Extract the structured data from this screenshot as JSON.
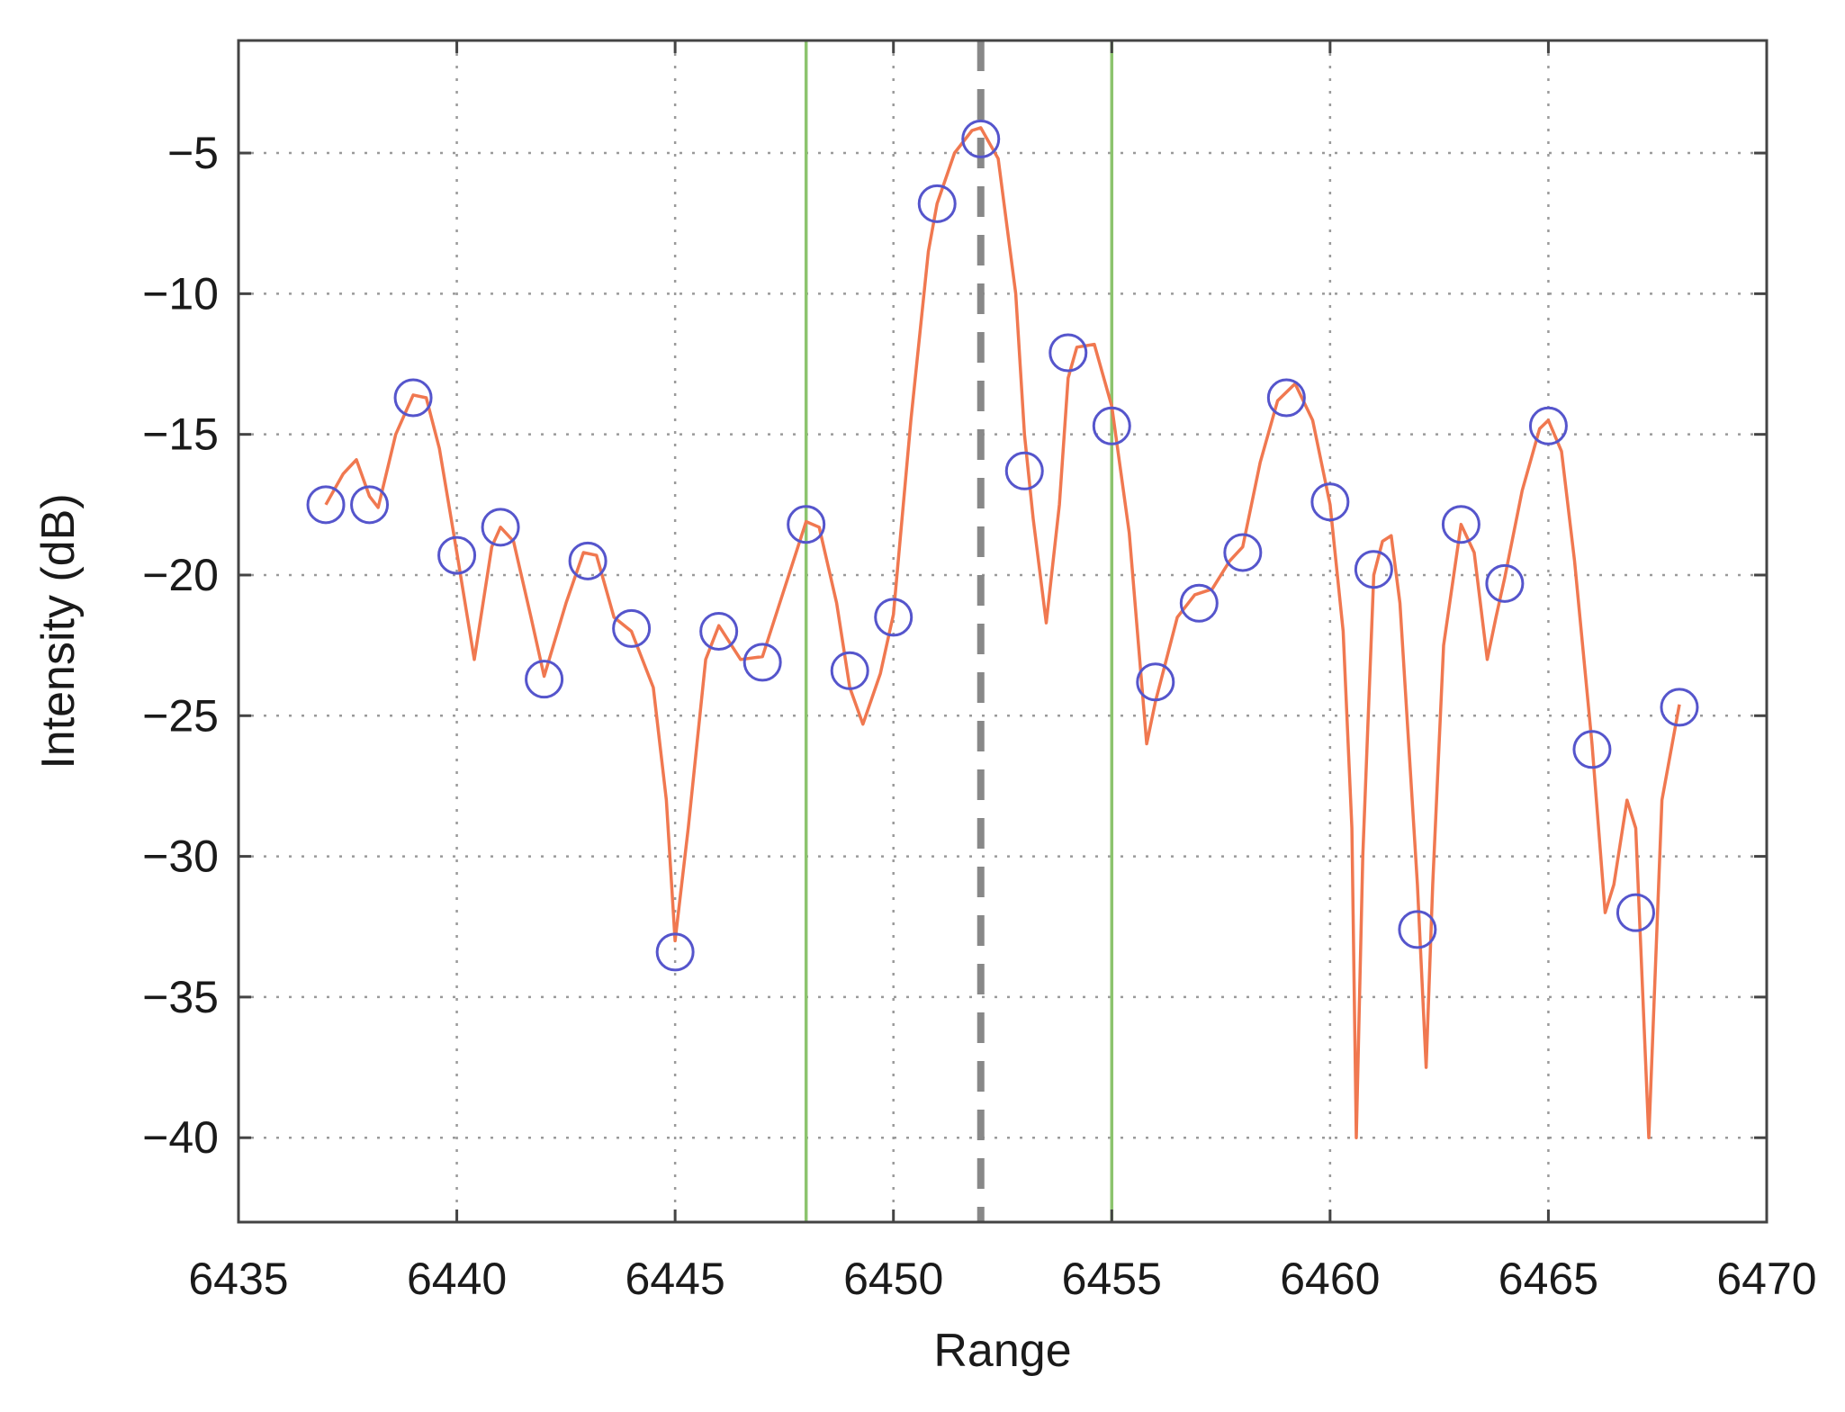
{
  "chart_data": {
    "type": "line",
    "title": "",
    "xlabel": "Range",
    "ylabel": "Intensity (dB)",
    "xlim": [
      6435,
      6470
    ],
    "ylim": [
      -43,
      -1
    ],
    "x_ticks": [
      6435,
      6440,
      6445,
      6450,
      6455,
      6460,
      6465,
      6470
    ],
    "x_tick_labels": [
      "6435",
      "6440",
      "6445",
      "6450",
      "6455",
      "6460",
      "6465",
      "6470"
    ],
    "y_ticks": [
      -5,
      -10,
      -15,
      -20,
      -25,
      -30,
      -35,
      -40
    ],
    "y_tick_labels": [
      "−5",
      "−10",
      "−15",
      "−20",
      "−25",
      "−30",
      "−35",
      "−40"
    ],
    "grid": true,
    "series": [
      {
        "kind": "interpolated-line",
        "color": "#f07850",
        "points": [
          [
            6437.0,
            -17.5
          ],
          [
            6437.4,
            -16.4
          ],
          [
            6437.7,
            -15.9
          ],
          [
            6438.0,
            -17.2
          ],
          [
            6438.2,
            -17.6
          ],
          [
            6438.6,
            -15.0
          ],
          [
            6439.0,
            -13.6
          ],
          [
            6439.3,
            -13.7
          ],
          [
            6439.6,
            -15.5
          ],
          [
            6440.0,
            -19.2
          ],
          [
            6440.4,
            -23.0
          ],
          [
            6440.8,
            -19.0
          ],
          [
            6441.0,
            -18.3
          ],
          [
            6441.3,
            -18.8
          ],
          [
            6441.7,
            -21.5
          ],
          [
            6442.0,
            -23.6
          ],
          [
            6442.5,
            -21.0
          ],
          [
            6442.9,
            -19.2
          ],
          [
            6443.2,
            -19.3
          ],
          [
            6443.6,
            -21.5
          ],
          [
            6444.0,
            -22.0
          ],
          [
            6444.5,
            -24.0
          ],
          [
            6444.8,
            -28.0
          ],
          [
            6445.0,
            -33.0
          ],
          [
            6445.3,
            -29.0
          ],
          [
            6445.7,
            -23.0
          ],
          [
            6446.0,
            -21.8
          ],
          [
            6446.5,
            -23.0
          ],
          [
            6447.0,
            -22.9
          ],
          [
            6447.5,
            -20.5
          ],
          [
            6448.0,
            -18.1
          ],
          [
            6448.3,
            -18.3
          ],
          [
            6448.7,
            -21.0
          ],
          [
            6449.0,
            -24.0
          ],
          [
            6449.3,
            -25.3
          ],
          [
            6449.7,
            -23.5
          ],
          [
            6450.0,
            -21.4
          ],
          [
            6450.4,
            -14.5
          ],
          [
            6450.8,
            -8.5
          ],
          [
            6451.0,
            -6.8
          ],
          [
            6451.4,
            -5.0
          ],
          [
            6451.8,
            -4.2
          ],
          [
            6452.0,
            -4.1
          ],
          [
            6452.4,
            -5.2
          ],
          [
            6452.8,
            -10.0
          ],
          [
            6453.0,
            -15.0
          ],
          [
            6453.2,
            -18.0
          ],
          [
            6453.5,
            -21.7
          ],
          [
            6453.8,
            -17.5
          ],
          [
            6454.0,
            -13.0
          ],
          [
            6454.2,
            -11.9
          ],
          [
            6454.6,
            -11.8
          ],
          [
            6455.0,
            -14.0
          ],
          [
            6455.4,
            -18.5
          ],
          [
            6455.8,
            -26.0
          ],
          [
            6456.0,
            -24.5
          ],
          [
            6456.5,
            -21.5
          ],
          [
            6456.9,
            -20.7
          ],
          [
            6457.3,
            -20.5
          ],
          [
            6457.7,
            -19.5
          ],
          [
            6458.0,
            -19.0
          ],
          [
            6458.4,
            -16.0
          ],
          [
            6458.8,
            -13.8
          ],
          [
            6459.2,
            -13.2
          ],
          [
            6459.6,
            -14.5
          ],
          [
            6460.0,
            -17.5
          ],
          [
            6460.3,
            -22.0
          ],
          [
            6460.5,
            -29.0
          ],
          [
            6460.6,
            -40.0
          ],
          [
            6460.75,
            -30.0
          ],
          [
            6460.9,
            -24.0
          ],
          [
            6461.0,
            -20.0
          ],
          [
            6461.2,
            -18.8
          ],
          [
            6461.4,
            -18.6
          ],
          [
            6461.6,
            -21.0
          ],
          [
            6461.8,
            -26.0
          ],
          [
            6462.0,
            -31.0
          ],
          [
            6462.2,
            -37.5
          ],
          [
            6462.35,
            -31.0
          ],
          [
            6462.6,
            -22.5
          ],
          [
            6463.0,
            -18.2
          ],
          [
            6463.3,
            -19.2
          ],
          [
            6463.6,
            -23.0
          ],
          [
            6463.8,
            -21.5
          ],
          [
            6464.0,
            -20.1
          ],
          [
            6464.4,
            -17.0
          ],
          [
            6464.8,
            -14.8
          ],
          [
            6465.0,
            -14.5
          ],
          [
            6465.3,
            -15.6
          ],
          [
            6465.6,
            -19.5
          ],
          [
            6466.0,
            -26.0
          ],
          [
            6466.3,
            -32.0
          ],
          [
            6466.5,
            -31.0
          ],
          [
            6466.8,
            -28.0
          ],
          [
            6467.0,
            -29.0
          ],
          [
            6467.3,
            -40.0
          ],
          [
            6467.6,
            -28.0
          ],
          [
            6468.0,
            -24.6
          ]
        ]
      },
      {
        "kind": "markers",
        "marker": "circle",
        "color": "#5555cc",
        "x": [
          6437,
          6438,
          6439,
          6440,
          6441,
          6442,
          6443,
          6444,
          6445,
          6446,
          6447,
          6448,
          6449,
          6450,
          6451,
          6452,
          6453,
          6454,
          6455,
          6456,
          6457,
          6458,
          6459,
          6460,
          6461,
          6462,
          6463,
          6464,
          6465,
          6466,
          6467,
          6468
        ],
        "y": [
          -17.5,
          -17.5,
          -13.7,
          -19.3,
          -18.3,
          -23.7,
          -19.5,
          -21.9,
          -33.4,
          -22.0,
          -23.1,
          -18.2,
          -23.4,
          -21.5,
          -6.8,
          -4.5,
          -16.3,
          -12.1,
          -14.7,
          -23.8,
          -21.0,
          -19.2,
          -13.7,
          -17.4,
          -19.8,
          -32.6,
          -18.2,
          -20.3,
          -14.7,
          -26.2,
          -32.0,
          -24.7
        ]
      }
    ],
    "reference_lines": [
      {
        "x": 6448,
        "color": "#8cc46e",
        "style": "solid"
      },
      {
        "x": 6452,
        "color": "#888888",
        "style": "dashed"
      },
      {
        "x": 6455,
        "color": "#8cc46e",
        "style": "solid"
      }
    ]
  }
}
